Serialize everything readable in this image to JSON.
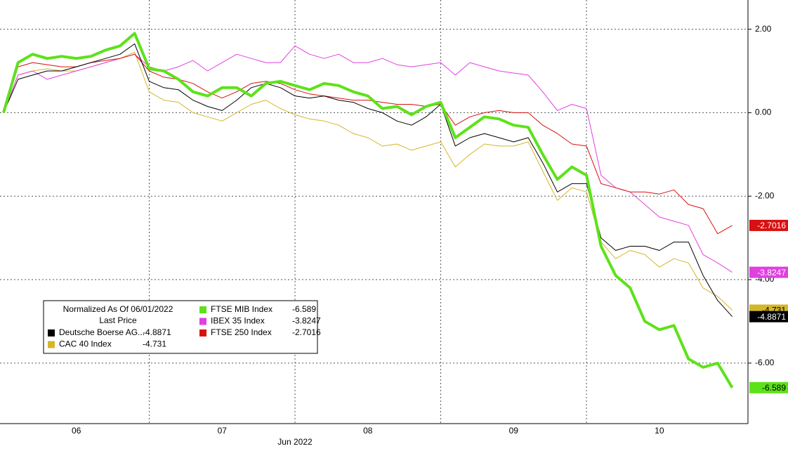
{
  "chart_data": {
    "type": "line",
    "legend_title": "Normalized As Of 06/01/2022",
    "legend_subtitle": "Last Price",
    "x_axis_label": "Jun 2022",
    "x": [
      6.0,
      6.1,
      6.2,
      6.3,
      6.4,
      6.5,
      6.6,
      6.7,
      6.8,
      6.9,
      7.0,
      7.1,
      7.2,
      7.3,
      7.4,
      7.5,
      7.6,
      7.7,
      7.8,
      7.9,
      8.0,
      8.1,
      8.2,
      8.3,
      8.4,
      8.5,
      8.6,
      8.7,
      8.8,
      8.9,
      9.0,
      9.1,
      9.2,
      9.3,
      9.4,
      9.5,
      9.6,
      9.7,
      9.8,
      9.9,
      10.0,
      10.1,
      10.2,
      10.3,
      10.4,
      10.5,
      10.6,
      10.7,
      10.8,
      10.9,
      11.0
    ],
    "xlim": [
      5.976,
      11.108
    ],
    "xticks": [
      {
        "value": 6.5,
        "label": "06"
      },
      {
        "value": 7.5,
        "label": "07"
      },
      {
        "value": 8.5,
        "label": "08"
      },
      {
        "value": 9.5,
        "label": "09"
      },
      {
        "value": 10.5,
        "label": "10"
      }
    ],
    "xgrid": [
      7,
      8,
      9,
      10
    ],
    "ylim": [
      -7.45,
      2.7
    ],
    "yticks": [
      {
        "value": 2,
        "label": "2.00"
      },
      {
        "value": 0,
        "label": "0.00"
      },
      {
        "value": -2,
        "label": "-2.00"
      },
      {
        "value": -4,
        "label": "-4.00"
      },
      {
        "value": -6,
        "label": "-6.00"
      }
    ],
    "grid": true,
    "series": [
      {
        "name": "Deutsche Boerse AG...",
        "color": "#000000",
        "width": 1,
        "column": 0,
        "row": 2,
        "values": [
          0,
          0.8,
          0.9,
          1.0,
          1.0,
          1.1,
          1.2,
          1.3,
          1.4,
          1.65,
          0.75,
          0.6,
          0.55,
          0.3,
          0.15,
          0.05,
          0.3,
          0.6,
          0.7,
          0.6,
          0.4,
          0.35,
          0.4,
          0.3,
          0.25,
          0.1,
          0.0,
          -0.2,
          -0.3,
          -0.1,
          0.2,
          -0.8,
          -0.6,
          -0.5,
          -0.6,
          -0.7,
          -0.6,
          -1.2,
          -1.9,
          -1.7,
          -1.7,
          -3.0,
          -3.3,
          -3.2,
          -3.2,
          -3.3,
          -3.1,
          -3.1,
          -3.9,
          -4.5,
          -4.8871
        ]
      },
      {
        "name": "CAC 40 Index",
        "color": "#d4b62a",
        "width": 1,
        "column": 0,
        "row": 3,
        "values": [
          0,
          0.9,
          1.0,
          1.05,
          1.0,
          1.0,
          1.1,
          1.2,
          1.3,
          1.45,
          0.5,
          0.3,
          0.25,
          0.0,
          -0.1,
          -0.2,
          0.0,
          0.2,
          0.3,
          0.1,
          -0.05,
          -0.15,
          -0.2,
          -0.3,
          -0.5,
          -0.6,
          -0.8,
          -0.75,
          -0.9,
          -0.8,
          -0.7,
          -1.3,
          -1.0,
          -0.75,
          -0.8,
          -0.8,
          -0.7,
          -1.4,
          -2.1,
          -1.8,
          -1.9,
          -3.1,
          -3.5,
          -3.3,
          -3.4,
          -3.7,
          -3.5,
          -3.6,
          -4.2,
          -4.4,
          -4.731
        ]
      },
      {
        "name": "FTSE MIB Index",
        "color": "#5de21a",
        "width": 4,
        "column": 1,
        "row": 0,
        "values": [
          0,
          1.2,
          1.4,
          1.3,
          1.35,
          1.3,
          1.35,
          1.5,
          1.6,
          1.9,
          1.05,
          1.0,
          0.8,
          0.5,
          0.4,
          0.6,
          0.6,
          0.4,
          0.7,
          0.75,
          0.65,
          0.55,
          0.7,
          0.65,
          0.5,
          0.4,
          0.1,
          0.15,
          -0.05,
          0.15,
          0.25,
          -0.6,
          -0.35,
          -0.1,
          -0.15,
          -0.3,
          -0.35,
          -1.0,
          -1.6,
          -1.3,
          -1.5,
          -3.2,
          -3.9,
          -4.2,
          -5.0,
          -5.2,
          -5.1,
          -5.9,
          -6.1,
          -6.0,
          -6.589
        ]
      },
      {
        "name": "IBEX 35 Index",
        "color": "#e040e0",
        "width": 1,
        "column": 1,
        "row": 1,
        "values": [
          0,
          0.9,
          1.0,
          0.8,
          0.9,
          1.0,
          1.1,
          1.2,
          1.3,
          1.4,
          1.1,
          1.0,
          1.1,
          1.25,
          1.0,
          1.2,
          1.4,
          1.3,
          1.2,
          1.2,
          1.6,
          1.4,
          1.3,
          1.4,
          1.2,
          1.2,
          1.3,
          1.15,
          1.1,
          1.15,
          1.2,
          0.9,
          1.2,
          1.1,
          1.0,
          0.95,
          0.9,
          0.5,
          0.05,
          0.2,
          0.1,
          -1.5,
          -1.8,
          -1.9,
          -2.2,
          -2.5,
          -2.6,
          -2.7,
          -3.4,
          -3.6,
          -3.8247
        ]
      },
      {
        "name": "FTSE 250 Index",
        "color": "#d81010",
        "width": 1,
        "column": 1,
        "row": 2,
        "values": [
          0,
          1.1,
          1.2,
          1.15,
          1.1,
          1.1,
          1.2,
          1.25,
          1.3,
          1.4,
          1.0,
          0.85,
          0.8,
          0.7,
          0.5,
          0.35,
          0.5,
          0.7,
          0.75,
          0.7,
          0.55,
          0.45,
          0.4,
          0.35,
          0.3,
          0.3,
          0.25,
          0.2,
          0.2,
          0.15,
          0.2,
          -0.3,
          -0.1,
          0.0,
          0.05,
          0.0,
          0.0,
          -0.3,
          -0.5,
          -0.75,
          -0.8,
          -1.7,
          -1.8,
          -1.9,
          -1.9,
          -1.95,
          -1.85,
          -2.2,
          -2.3,
          -2.9,
          -2.7016
        ]
      }
    ],
    "draw_order": [
      1,
      3,
      4,
      0,
      2
    ],
    "tag_text_colors": [
      "#ffffff",
      "#000000",
      "#000000",
      "#ffffff",
      "#ffffff"
    ]
  }
}
